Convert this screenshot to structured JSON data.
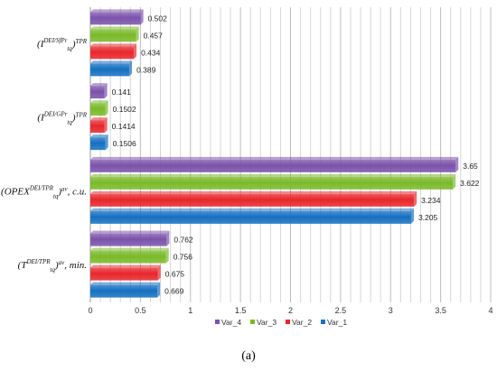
{
  "chart_data": {
    "type": "bar",
    "orientation": "horizontal",
    "categories": [
      {
        "main": "(I",
        "sub": "tq",
        "sup": "DEI/SfPr",
        "tail": ")",
        "tail_sup": "TPR",
        "suffix": ""
      },
      {
        "main": "(I",
        "sub": "tq",
        "sup": "DEI/GPr",
        "tail": ")",
        "tail_sup": "TPR",
        "suffix": ""
      },
      {
        "main": "(OPEX",
        "sub": "tq",
        "sup": "DEI/TPR",
        "tail": ")",
        "tail_sup": "av",
        "suffix": ", c.u."
      },
      {
        "main": "(T",
        "sub": "tq",
        "sup": "DEI/TPR",
        "tail": ")",
        "tail_sup": "av",
        "suffix": ", min."
      }
    ],
    "series": [
      {
        "name": "Var_4",
        "color": "#7B52AB",
        "values": [
          0.502,
          0.141,
          3.65,
          0.762
        ],
        "labels": [
          "0.502",
          "0.141",
          "3.65",
          "0.762"
        ]
      },
      {
        "name": "Var_3",
        "color": "#7AB929",
        "values": [
          0.457,
          0.1502,
          3.622,
          0.756
        ],
        "labels": [
          "0.457",
          "0.1502",
          "3.622",
          "0.756"
        ]
      },
      {
        "name": "Var_2",
        "color": "#E8262B",
        "values": [
          0.434,
          0.1414,
          3.234,
          0.675
        ],
        "labels": [
          "0.434",
          "0.1414",
          "3.234",
          "0.675"
        ]
      },
      {
        "name": "Var_1",
        "color": "#1570C0",
        "values": [
          0.389,
          0.1506,
          3.205,
          0.669
        ],
        "labels": [
          "0.389",
          "0.1506",
          "3.205",
          "0.669"
        ]
      }
    ],
    "xlim": [
      0,
      4
    ],
    "xticks": [
      "0",
      "0.5",
      "1",
      "1.5",
      "2",
      "2.5",
      "3",
      "3.5",
      "4"
    ],
    "grid": true,
    "legend_position": "bottom"
  },
  "caption": "(a)"
}
